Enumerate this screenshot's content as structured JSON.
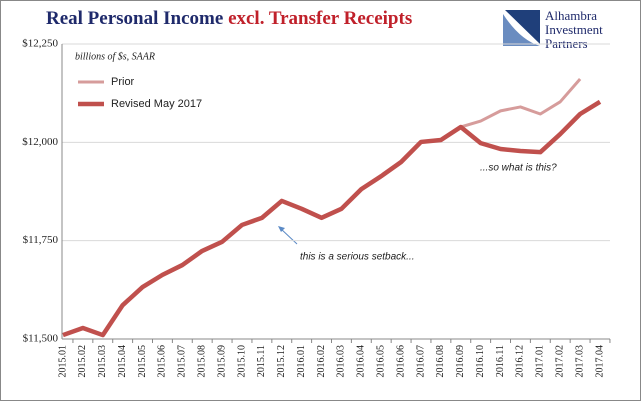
{
  "chart_data": {
    "type": "line",
    "title": "Real Personal Income",
    "title_emphasis": "excl. Transfer Receipts",
    "subtitle": "billions of $s, SAAR",
    "logo": [
      "Alhambra",
      "Investment",
      "Partners"
    ],
    "annotations": [
      "this is a serious setback...",
      "...so what is this?"
    ],
    "categories": [
      "2015.01",
      "2015.02",
      "2015.03",
      "2015.04",
      "2015.05",
      "2015.06",
      "2015.07",
      "2015.08",
      "2015.09",
      "2015.10",
      "2015.11",
      "2015.12",
      "2016.01",
      "2016.02",
      "2016.03",
      "2016.04",
      "2016.05",
      "2016.06",
      "2016.07",
      "2016.08",
      "2016.09",
      "2016.10",
      "2016.11",
      "2016.12",
      "2017.01",
      "2017.02",
      "2017.03",
      "2017.04"
    ],
    "series": [
      {
        "name": "Prior",
        "color": "#d69c9b",
        "values": [
          null,
          null,
          null,
          null,
          null,
          null,
          null,
          null,
          null,
          null,
          null,
          null,
          null,
          null,
          null,
          null,
          null,
          null,
          null,
          null,
          12039,
          12054,
          12080,
          12090,
          12072,
          12103,
          12161,
          null
        ]
      },
      {
        "name": "Revised May 2017",
        "color": "#c0504d",
        "values": [
          11510,
          11528,
          11510,
          11586,
          11632,
          11663,
          11688,
          11724,
          11747,
          11790,
          11808,
          11851,
          11831,
          11808,
          11831,
          11881,
          11914,
          11950,
          12001,
          12006,
          12039,
          11998,
          11983,
          11978,
          11975,
          12021,
          12072,
          12103
        ]
      }
    ],
    "ylim": [
      11500,
      12250
    ],
    "yticks": [
      {
        "value": 11500,
        "label": "$11,500"
      },
      {
        "value": 11750,
        "label": "$11,750"
      },
      {
        "value": 12000,
        "label": "$12,000"
      },
      {
        "value": 12250,
        "label": "$12,250"
      }
    ],
    "grid": true
  }
}
